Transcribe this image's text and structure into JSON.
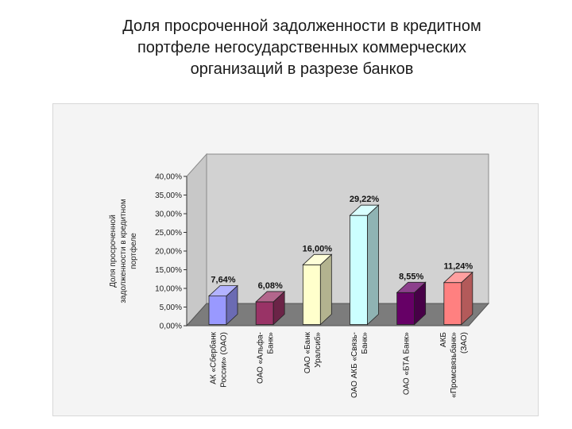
{
  "slide": {
    "title_lines": [
      "Доля просроченной задолженности в кредитном",
      "портфеле негосударственных коммерческих",
      "организаций в разрезе банков"
    ]
  },
  "chart_data": {
    "type": "bar",
    "title": "",
    "ylabel_lines": [
      "Доля просроченной",
      "задолженности в кредитном",
      "портфеле"
    ],
    "ylim": [
      0,
      40
    ],
    "yticks": [
      0,
      5,
      10,
      15,
      20,
      25,
      30,
      35,
      40
    ],
    "ytick_labels": [
      "0,00%",
      "5,00%",
      "10,00%",
      "15,00%",
      "20,00%",
      "25,00%",
      "30,00%",
      "35,00%",
      "40,00%"
    ],
    "categories": [
      [
        "АК «Сбербанк",
        "России» (ОАО)"
      ],
      [
        "ОАО «Альфа-",
        "Банк»"
      ],
      [
        "ОАО «Банк",
        "Уралсиб»"
      ],
      [
        "ОАО АКБ «Связь-",
        "Банк»"
      ],
      [
        "ОАО «БТА Банк»"
      ],
      [
        "АКБ",
        "«Промсвязьбанк»",
        "(ЗАО)"
      ]
    ],
    "values": [
      7.64,
      6.08,
      16.0,
      29.22,
      8.55,
      11.24
    ],
    "value_labels": [
      "7,64%",
      "6,08%",
      "16,00%",
      "29,22%",
      "8,55%",
      "11,24%"
    ],
    "colors": [
      "#9999ff",
      "#993366",
      "#ffffcc",
      "#ccffff",
      "#660066",
      "#ff8080"
    ],
    "grid": false,
    "legend": "none"
  }
}
